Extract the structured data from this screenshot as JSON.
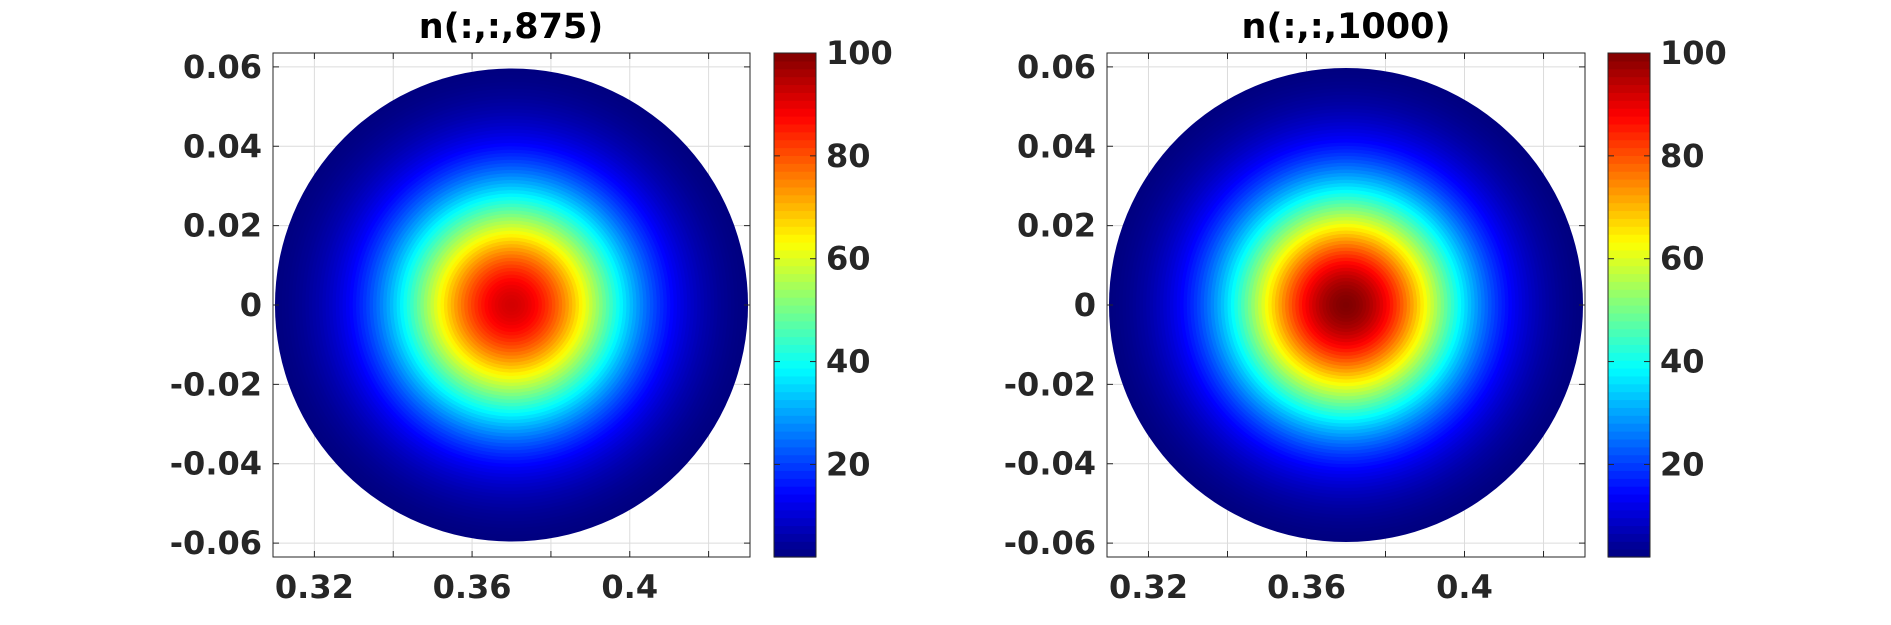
{
  "chart_data": [
    {
      "type": "heatmap",
      "title": "n(:,:,875)",
      "xlabel": "",
      "ylabel": "",
      "xlim": [
        0.3095,
        0.4305
      ],
      "ylim": [
        -0.0635,
        0.0635
      ],
      "x_ticks": [
        {
          "value": 0.32,
          "label": "0.32"
        },
        {
          "value": 0.34,
          "label": ""
        },
        {
          "value": 0.36,
          "label": "0.36"
        },
        {
          "value": 0.38,
          "label": ""
        },
        {
          "value": 0.4,
          "label": "0.4"
        },
        {
          "value": 0.42,
          "label": ""
        }
      ],
      "y_ticks": [
        {
          "value": 0.06,
          "label": "0.06"
        },
        {
          "value": 0.04,
          "label": "0.04"
        },
        {
          "value": 0.02,
          "label": "0.02"
        },
        {
          "value": 0,
          "label": "0"
        },
        {
          "value": -0.02,
          "label": "-0.02"
        },
        {
          "value": -0.04,
          "label": "-0.04"
        },
        {
          "value": -0.06,
          "label": "-0.06"
        }
      ],
      "grid": true,
      "disk": {
        "center_x": 0.37,
        "center_y": 0,
        "radius": 0.06
      },
      "field": {
        "peak": 92,
        "edge": 2,
        "profile": "radial gaussian"
      },
      "colormap": "jet",
      "colorbar": {
        "range": [
          2,
          100
        ],
        "ticks": [
          20,
          40,
          60,
          80,
          100
        ],
        "labels": [
          "20",
          "40",
          "60",
          "80",
          "100"
        ]
      }
    },
    {
      "type": "heatmap",
      "title": "n(:,:,1000)",
      "xlabel": "",
      "ylabel": "",
      "xlim": [
        0.3095,
        0.4305
      ],
      "ylim": [
        -0.0635,
        0.0635
      ],
      "x_ticks": [
        {
          "value": 0.32,
          "label": "0.32"
        },
        {
          "value": 0.34,
          "label": ""
        },
        {
          "value": 0.36,
          "label": "0.36"
        },
        {
          "value": 0.38,
          "label": ""
        },
        {
          "value": 0.4,
          "label": "0.4"
        },
        {
          "value": 0.42,
          "label": ""
        }
      ],
      "y_ticks": [
        {
          "value": 0.06,
          "label": "0.06"
        },
        {
          "value": 0.04,
          "label": "0.04"
        },
        {
          "value": 0.02,
          "label": "0.02"
        },
        {
          "value": 0,
          "label": "0"
        },
        {
          "value": -0.02,
          "label": "-0.02"
        },
        {
          "value": -0.04,
          "label": "-0.04"
        },
        {
          "value": -0.06,
          "label": "-0.06"
        }
      ],
      "grid": true,
      "disk": {
        "center_x": 0.37,
        "center_y": 0,
        "radius": 0.06
      },
      "field": {
        "peak": 100,
        "edge": 2,
        "profile": "radial gaussian"
      },
      "colormap": "jet",
      "colorbar": {
        "range": [
          2,
          100
        ],
        "ticks": [
          20,
          40,
          60,
          80,
          100
        ],
        "labels": [
          "20",
          "40",
          "60",
          "80",
          "100"
        ]
      }
    }
  ]
}
